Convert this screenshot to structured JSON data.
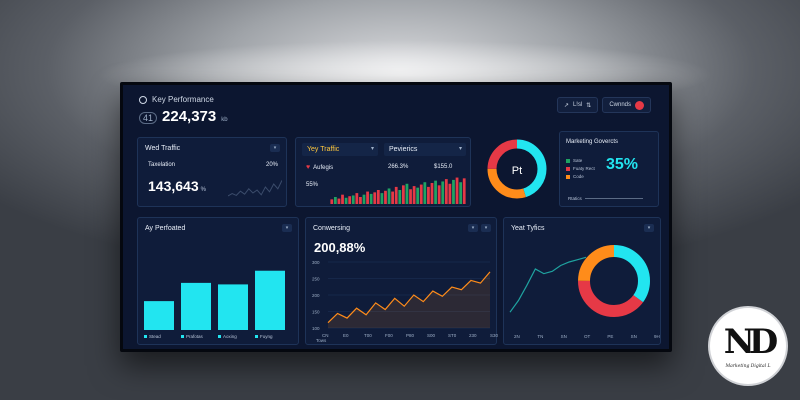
{
  "header": {
    "title": "Key Performance",
    "prefix": "41",
    "value": "224,373",
    "suffix": "kb"
  },
  "toolbar": {
    "item1": "L!sl",
    "item2": "Cwnnds"
  },
  "web_traffic": {
    "title": "Wed Traffic",
    "label": "Taxelation",
    "pct": "20%",
    "value": "143,643",
    "suffix": "%"
  },
  "year_traffic": {
    "title": "Yey Traffic",
    "subtitle": "Aufegis",
    "value": "55%"
  },
  "previews": {
    "title": "Pevierics",
    "v1": "266.3%",
    "v2": "$155.0"
  },
  "donut_top": {
    "center_label": "Pt"
  },
  "marketing": {
    "title": "Marketing Govercts",
    "value": "35%",
    "legend": [
      "Sate",
      "Fuaty Rect",
      "Code"
    ],
    "footer": "Rtatics"
  },
  "ay_perforated": {
    "title": "Ay Perfoated",
    "legend": [
      "Stead",
      "Prafotas",
      "Aoxing",
      "Fuyng"
    ]
  },
  "converting": {
    "title": "Conwersing",
    "value": "200,88%",
    "xlabel": "Tows"
  },
  "yeat_tyfics": {
    "title": "Yeat Tyfics"
  },
  "colors": {
    "cyan": "#22e5f0",
    "orange": "#ff8c1a",
    "red": "#e63946",
    "green": "#1fa363",
    "navy": "#0c1630"
  },
  "chart_data": [
    {
      "type": "bar",
      "name": "ay-perforated",
      "categories": [
        "Stead",
        "Prafotas",
        "Aoxing",
        "Fuyng"
      ],
      "values": [
        38,
        62,
        60,
        78
      ],
      "ylim": [
        0,
        100
      ]
    },
    {
      "type": "line",
      "name": "converting",
      "y_ticks": [
        "300",
        "250",
        "200",
        "150",
        "100"
      ],
      "x_ticks": [
        "CN",
        "E0",
        "T00",
        "F00",
        "P80",
        "S00",
        "ST0",
        "230",
        "S30"
      ],
      "values": [
        8,
        22,
        15,
        30,
        20,
        38,
        28,
        45,
        33,
        50,
        40,
        56,
        48,
        62,
        58,
        72,
        68,
        85
      ],
      "ylim": [
        0,
        100
      ]
    },
    {
      "type": "line",
      "name": "web-traffic-spark",
      "values": [
        10,
        14,
        11,
        18,
        13,
        22,
        15,
        20,
        12,
        25,
        17,
        30,
        22,
        36
      ],
      "ylim": [
        0,
        50
      ]
    },
    {
      "type": "bar",
      "name": "year-traffic-bars",
      "values": [
        6,
        9,
        7,
        12,
        8,
        10,
        11,
        14,
        9,
        12,
        16,
        13,
        15,
        18,
        14,
        17,
        20,
        16,
        22,
        18,
        24,
        26,
        19,
        23,
        21,
        25,
        28,
        22,
        27,
        30,
        24,
        29,
        32,
        26,
        31,
        34,
        28,
        33
      ],
      "ylim": [
        0,
        36
      ]
    },
    {
      "type": "pie",
      "name": "top-donut",
      "values": [
        45,
        30,
        25
      ],
      "colors": [
        "#22e5f0",
        "#ff8c1a",
        "#e63946"
      ]
    },
    {
      "type": "pie",
      "name": "yeat-donut",
      "values": [
        35,
        40,
        25
      ],
      "colors": [
        "#22e5f0",
        "#e63946",
        "#ff8c1a"
      ]
    },
    {
      "type": "line",
      "name": "yeat-line",
      "values": [
        5,
        15,
        28,
        42,
        38,
        40,
        45,
        48,
        50,
        52
      ],
      "x_ticks": [
        "2N",
        "TN",
        "SN",
        "OT",
        "PE",
        "SN",
        "9H"
      ],
      "ylim": [
        0,
        60
      ]
    }
  ],
  "logo": {
    "letters": "ND",
    "caption": "Marketing Digital L"
  }
}
